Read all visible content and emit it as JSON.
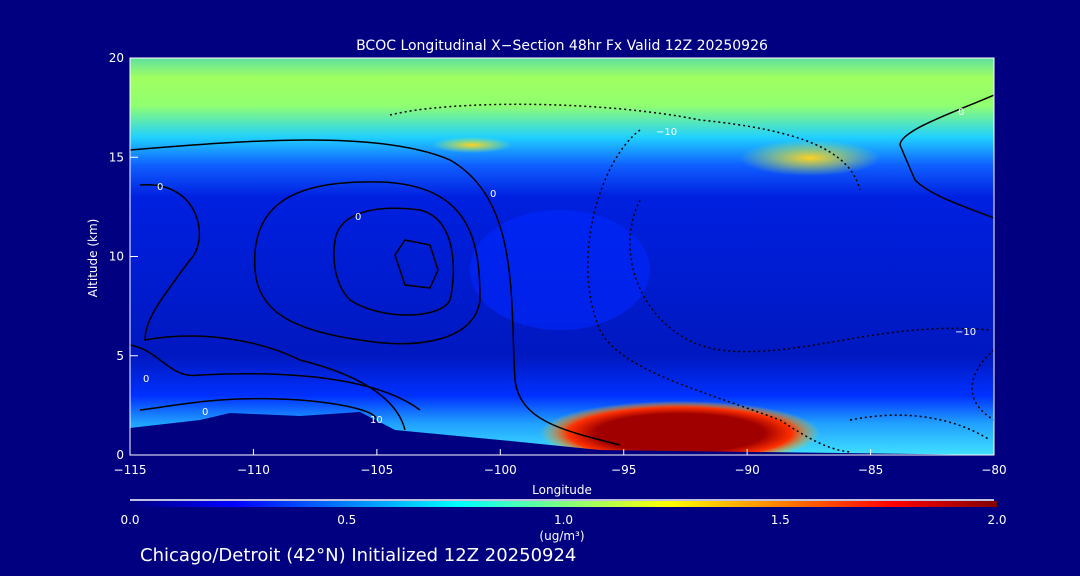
{
  "chart_data": {
    "type": "heatmap",
    "title": "BCOC Longitudinal X−Section 48hr  Fx Valid 12Z 20250926",
    "xlabel": "Longitude",
    "ylabel": "Altitude (km)",
    "xlim": [
      -115,
      -80
    ],
    "ylim": [
      0,
      20
    ],
    "xticks": [
      "−115",
      "−110",
      "−105",
      "−100",
      "−95",
      "−90",
      "−85",
      "−80"
    ],
    "xtick_values": [
      -115,
      -110,
      -105,
      -100,
      -95,
      -90,
      -85,
      -80
    ],
    "yticks": [
      "0",
      "5",
      "10",
      "15",
      "20"
    ],
    "ytick_values": [
      0,
      5,
      10,
      15,
      20
    ],
    "colorbar": {
      "range": [
        0,
        2
      ],
      "ticks": [
        "0.0",
        "0.5",
        "1.0",
        "1.5",
        "2.0"
      ],
      "units": "(ug/m³)",
      "colors": [
        "#000080",
        "#0000ff",
        "#00ffff",
        "#ffff00",
        "#ff0000",
        "#800000"
      ]
    },
    "features": [
      {
        "name": "high concentration plume",
        "lon": [
          -96,
          -89
        ],
        "alt": [
          0.5,
          2.2
        ],
        "value": 2.0
      },
      {
        "name": "upper layer maximum",
        "lon": [
          -90,
          -86
        ],
        "alt": [
          14.5,
          15.5
        ],
        "value": 1.3
      },
      {
        "name": "upper layer maximum",
        "lon": [
          -103,
          -101
        ],
        "alt": [
          15.2,
          15.8
        ],
        "value": 1.3
      }
    ],
    "contour_labels": [
      "0",
      "0",
      "0",
      "0",
      "0",
      "0",
      "10",
      "−10",
      "−10"
    ]
  },
  "footer": "Chicago/Detroit (42°N) Initialized 12Z 20250924"
}
